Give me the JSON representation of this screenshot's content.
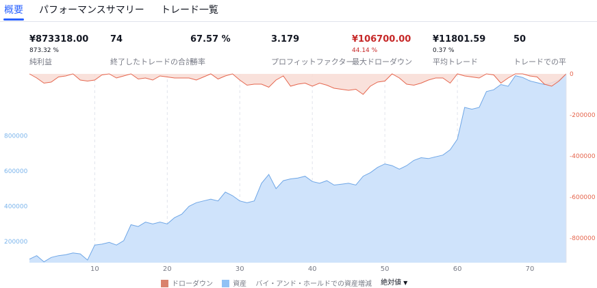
{
  "tabs": [
    {
      "label": "概要",
      "active": true
    },
    {
      "label": "パフォーマンスサマリー",
      "active": false
    },
    {
      "label": "トレード一覧",
      "active": false
    }
  ],
  "stats": [
    {
      "value": "¥873318.00",
      "sub": "873.32 %",
      "label": "純利益",
      "negative": false
    },
    {
      "value": "74",
      "sub": "",
      "label": "終了したトレードの合計",
      "negative": false
    },
    {
      "value": "67.57 %",
      "sub": "",
      "label": "勝率",
      "negative": false
    },
    {
      "value": "3.179",
      "sub": "",
      "label": "プロフィットファクター",
      "negative": false
    },
    {
      "value": "¥106700.00",
      "sub": "44.14 %",
      "label": "最大ドローダウン",
      "negative": true
    },
    {
      "value": "¥11801.59",
      "sub": "0.37 %",
      "label": "平均トレード",
      "negative": false
    },
    {
      "value": "50",
      "sub": "",
      "label": "トレードでの平",
      "negative": false
    }
  ],
  "legend": {
    "drawdown_label": "ドローダウン",
    "equity_label": "資産",
    "buyhold_label": "バイ・アンド・ホールドでの資産増減",
    "mode_label": "絶対値",
    "drawdown_color": "#d9826c",
    "equity_color": "#90c2f5"
  },
  "colors": {
    "drawdown_line": "#e5654d",
    "drawdown_fill": "#f8dcd5",
    "equity_line": "#6ea6e6",
    "equity_fill": "#cfe3fb",
    "left_axis": "#7cb5ec",
    "right_axis": "#e5654d"
  },
  "chart_data": {
    "type": "area",
    "x_ticks": [
      10,
      20,
      30,
      40,
      50,
      60,
      70
    ],
    "x_range": [
      1,
      75
    ],
    "left_axis_ticks": [
      "200000",
      "400000",
      "600000",
      "800000"
    ],
    "right_axis_ticks": [
      "0",
      "-200000",
      "-400000",
      "-600000",
      "-800000"
    ],
    "left_range": [
      80000,
      1150000
    ],
    "right_range": [
      -920000,
      0
    ],
    "series": [
      {
        "name": "資産",
        "axis": "left",
        "x": [
          1,
          2,
          3,
          4,
          5,
          6,
          7,
          8,
          9,
          10,
          11,
          12,
          13,
          14,
          15,
          16,
          17,
          18,
          19,
          20,
          21,
          22,
          23,
          24,
          25,
          26,
          27,
          28,
          29,
          30,
          31,
          32,
          33,
          34,
          35,
          36,
          37,
          38,
          39,
          40,
          41,
          42,
          43,
          44,
          45,
          46,
          47,
          48,
          49,
          50,
          51,
          52,
          53,
          54,
          55,
          56,
          57,
          58,
          59,
          60,
          61,
          62,
          63,
          64,
          65,
          66,
          67,
          68,
          69,
          70,
          71,
          72,
          73,
          74,
          75
        ],
        "values": [
          100000,
          120000,
          85000,
          110000,
          120000,
          125000,
          135000,
          130000,
          95000,
          180000,
          185000,
          195000,
          180000,
          205000,
          295000,
          285000,
          310000,
          300000,
          310000,
          300000,
          335000,
          355000,
          400000,
          420000,
          430000,
          440000,
          430000,
          480000,
          460000,
          430000,
          420000,
          430000,
          530000,
          580000,
          500000,
          545000,
          555000,
          560000,
          570000,
          540000,
          530000,
          545000,
          520000,
          525000,
          530000,
          520000,
          570000,
          590000,
          620000,
          640000,
          630000,
          610000,
          630000,
          660000,
          675000,
          670000,
          680000,
          690000,
          720000,
          780000,
          960000,
          950000,
          960000,
          1050000,
          1060000,
          1090000,
          1080000,
          1140000,
          1130000,
          1110000,
          1100000,
          1090000,
          1100000,
          1115000,
          1150000
        ]
      },
      {
        "name": "ドローダウン",
        "axis": "right",
        "x": [
          1,
          2,
          3,
          4,
          5,
          6,
          7,
          8,
          9,
          10,
          11,
          12,
          13,
          14,
          15,
          16,
          17,
          18,
          19,
          20,
          21,
          22,
          23,
          24,
          25,
          26,
          27,
          28,
          29,
          30,
          31,
          32,
          33,
          34,
          35,
          36,
          37,
          38,
          39,
          40,
          41,
          42,
          43,
          44,
          45,
          46,
          47,
          48,
          49,
          50,
          51,
          52,
          53,
          54,
          55,
          56,
          57,
          58,
          59,
          60,
          61,
          62,
          63,
          64,
          65,
          66,
          67,
          68,
          69,
          70,
          71,
          72,
          73,
          74,
          75
        ],
        "values": [
          0,
          -20000,
          -45000,
          -40000,
          -15000,
          -10000,
          0,
          -30000,
          -35000,
          -30000,
          -5000,
          0,
          -20000,
          -10000,
          0,
          -25000,
          -20000,
          -30000,
          -10000,
          -15000,
          -20000,
          -20000,
          -20000,
          -30000,
          -15000,
          0,
          -25000,
          -10000,
          0,
          -30000,
          -55000,
          -50000,
          -50000,
          -65000,
          -30000,
          -10000,
          -60000,
          -50000,
          -45000,
          -60000,
          -45000,
          -55000,
          -70000,
          -75000,
          -80000,
          -75000,
          -100000,
          -60000,
          -40000,
          -35000,
          0,
          -20000,
          -50000,
          -55000,
          -45000,
          -30000,
          -20000,
          -20000,
          -45000,
          0,
          -10000,
          -15000,
          -20000,
          0,
          -5000,
          -45000,
          -20000,
          0,
          0,
          -10000,
          -15000,
          -50000,
          -60000,
          -35000,
          0
        ]
      }
    ]
  }
}
